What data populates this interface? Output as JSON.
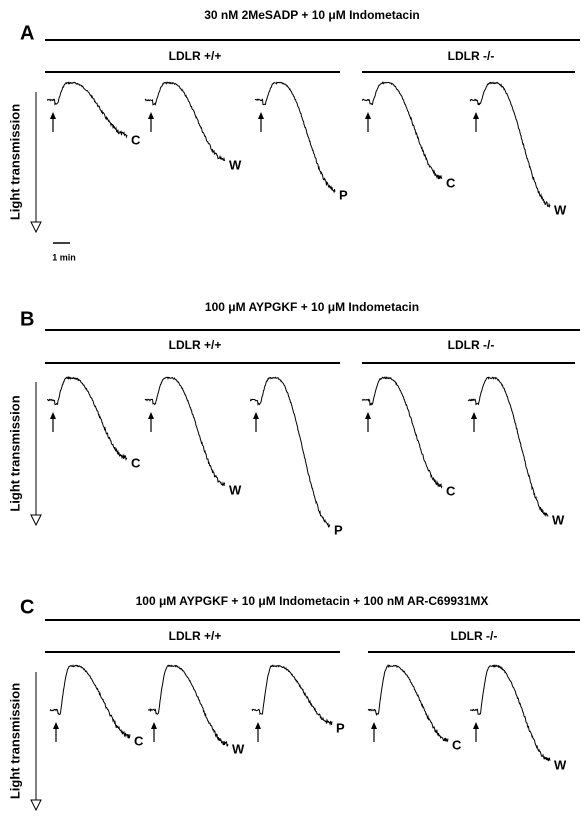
{
  "panels": [
    {
      "label": "A",
      "title": "30 nM 2MeSADP + 10 μM Indometacin",
      "groups": [
        {
          "label": "LDLR +/+",
          "traces": [
            "C",
            "W",
            "P"
          ]
        },
        {
          "label": "LDLR -/-",
          "traces": [
            "C",
            "W"
          ]
        }
      ],
      "y_label": "Light transmission",
      "scale_label": "1 min"
    },
    {
      "label": "B",
      "title": "100 μM AYPGKF + 10 μM Indometacin",
      "groups": [
        {
          "label": "LDLR +/+",
          "traces": [
            "C",
            "W",
            "P"
          ]
        },
        {
          "label": "LDLR -/-",
          "traces": [
            "C",
            "W"
          ]
        }
      ],
      "y_label": "Light transmission"
    },
    {
      "label": "C",
      "title": "100 μM AYPGKF + 10 μM Indometacin + 100 nM AR-C69931MX",
      "groups": [
        {
          "label": "LDLR +/+",
          "traces": [
            "C",
            "W",
            "P"
          ]
        },
        {
          "label": "LDLR -/-",
          "traces": [
            "C",
            "W"
          ]
        }
      ],
      "y_label": "Light transmission"
    }
  ]
}
